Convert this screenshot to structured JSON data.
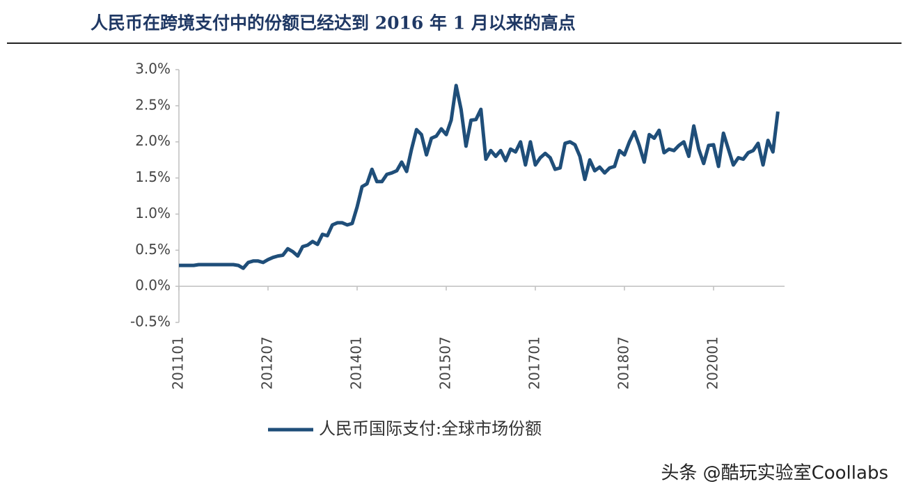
{
  "chart_data": {
    "type": "line",
    "title": "人民币在跨境支付中的份额已经达到 2016 年 1 月以来的高点",
    "watermark": "头条 @酷玩实验室Coollabs",
    "categories": [
      "201101",
      null,
      null,
      null,
      null,
      null,
      null,
      null,
      null,
      null,
      null,
      null,
      null,
      null,
      null,
      null,
      null,
      null,
      "201207",
      null,
      null,
      null,
      null,
      null,
      null,
      null,
      null,
      null,
      null,
      null,
      null,
      null,
      null,
      null,
      null,
      null,
      "201401",
      null,
      null,
      null,
      null,
      null,
      null,
      null,
      null,
      null,
      null,
      null,
      null,
      null,
      null,
      null,
      null,
      null,
      "201507",
      null,
      null,
      null,
      null,
      null,
      null,
      null,
      null,
      null,
      null,
      null,
      null,
      null,
      null,
      null,
      null,
      null,
      "201701",
      null,
      null,
      null,
      null,
      null,
      null,
      null,
      null,
      null,
      null,
      null,
      null,
      null,
      null,
      null,
      null,
      null,
      "201807",
      null,
      null,
      null,
      null,
      null,
      null,
      null,
      null,
      null,
      null,
      null,
      null,
      null,
      null,
      null,
      null,
      null,
      "202001",
      null,
      null,
      null,
      null,
      null,
      null,
      null,
      null,
      null,
      null,
      null,
      null,
      null
    ],
    "series": [
      {
        "name": "人民币国际支付:全球市场份额",
        "color": "#1f4e79",
        "values": [
          0.29,
          0.29,
          0.29,
          0.29,
          0.3,
          0.3,
          0.3,
          0.3,
          0.3,
          0.3,
          0.3,
          0.3,
          0.29,
          0.25,
          0.33,
          0.35,
          0.35,
          0.33,
          0.37,
          0.4,
          0.42,
          0.43,
          0.52,
          0.48,
          0.42,
          0.55,
          0.57,
          0.62,
          0.58,
          0.72,
          0.7,
          0.85,
          0.88,
          0.88,
          0.85,
          0.87,
          1.1,
          1.38,
          1.42,
          1.62,
          1.45,
          1.45,
          1.55,
          1.57,
          1.6,
          1.72,
          1.59,
          1.9,
          2.17,
          2.1,
          1.82,
          2.05,
          2.08,
          2.18,
          2.1,
          2.3,
          2.78,
          2.45,
          1.94,
          2.3,
          2.31,
          2.45,
          1.76,
          1.88,
          1.8,
          1.88,
          1.74,
          1.9,
          1.86,
          2.0,
          1.68,
          2.0,
          1.68,
          1.78,
          1.84,
          1.78,
          1.62,
          1.64,
          1.98,
          2.0,
          1.96,
          1.8,
          1.48,
          1.75,
          1.6,
          1.65,
          1.57,
          1.64,
          1.66,
          1.88,
          1.82,
          2.0,
          2.14,
          1.95,
          1.72,
          2.1,
          2.05,
          2.16,
          1.85,
          1.9,
          1.88,
          1.95,
          2.0,
          1.8,
          2.22,
          1.9,
          1.7,
          1.95,
          1.96,
          1.66,
          2.12,
          1.9,
          1.68,
          1.78,
          1.76,
          1.85,
          1.88,
          1.98,
          1.68,
          2.02,
          1.86,
          2.42
        ]
      }
    ],
    "ylim": [
      -0.5,
      3.0
    ],
    "yticks": [
      {
        "value": -0.5,
        "label": "-0.5%"
      },
      {
        "value": 0,
        "label": "0.0%"
      },
      {
        "value": 0.5,
        "label": "0.5%"
      },
      {
        "value": 1.0,
        "label": "1.0%"
      },
      {
        "value": 1.5,
        "label": "1.5%"
      },
      {
        "value": 2.0,
        "label": "2.0%"
      },
      {
        "value": 2.5,
        "label": "2.5%"
      },
      {
        "value": 3.0,
        "label": "3.0%"
      }
    ],
    "grid": false,
    "legend": "bottom"
  }
}
